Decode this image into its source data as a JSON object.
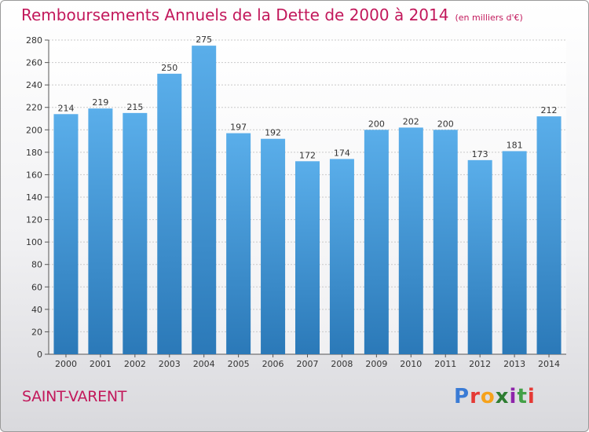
{
  "header": {
    "title": "Remboursements Annuels de la Dette de 2000 à 2014",
    "unit": "(en milliers d'€)"
  },
  "footer": {
    "commune": "SAINT-VARENT",
    "logo_letters": [
      "P",
      "r",
      "o",
      "x",
      "i",
      "t",
      "i"
    ],
    "logo_colors": [
      "#3a7bd5",
      "#e53935",
      "#f6a21b",
      "#2e7d32",
      "#8e24aa",
      "#43a047",
      "#e53935"
    ]
  },
  "colors": {
    "accent": "#c2185b",
    "bar_top": "#5aaeea",
    "bar_bottom": "#2b79b8"
  },
  "chart_data": {
    "type": "bar",
    "title": "Remboursements Annuels de la Dette de 2000 à 2014",
    "categories": [
      "2000",
      "2001",
      "2002",
      "2003",
      "2004",
      "2005",
      "2006",
      "2007",
      "2008",
      "2009",
      "2010",
      "2011",
      "2012",
      "2013",
      "2014"
    ],
    "values": [
      214,
      219,
      215,
      250,
      275,
      197,
      192,
      172,
      174,
      200,
      202,
      200,
      173,
      181,
      212
    ],
    "y_ticks": [
      0,
      20,
      40,
      60,
      80,
      100,
      120,
      140,
      160,
      180,
      200,
      220,
      240,
      260,
      280
    ],
    "ylim": [
      0,
      280
    ],
    "xlabel": "",
    "ylabel": "",
    "grid": true,
    "data_labels": true
  }
}
